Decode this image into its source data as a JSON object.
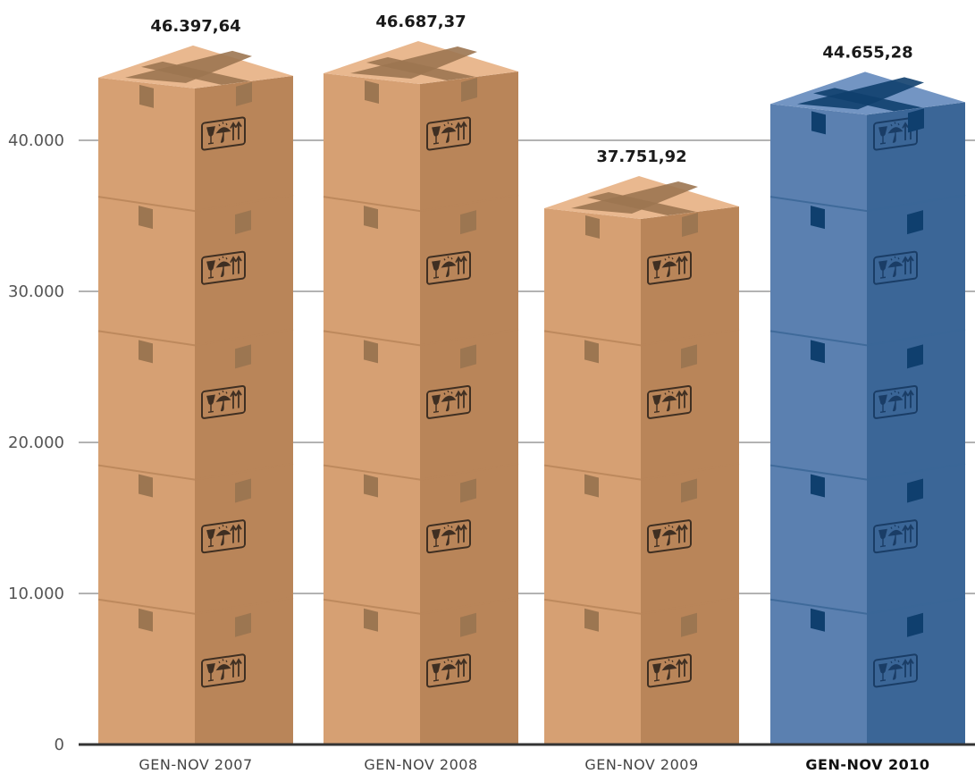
{
  "chart_data": {
    "type": "bar",
    "title": "",
    "xlabel": "",
    "ylabel": "",
    "categories": [
      "GEN-NOV 2007",
      "GEN-NOV 2008",
      "GEN-NOV 2009",
      "GEN-NOV 2010"
    ],
    "values": [
      46397.64,
      46687.37,
      37751.92,
      44655.28
    ],
    "value_labels": [
      "46.397,64",
      "46.687,37",
      "37.751,92",
      "44.655,28"
    ],
    "highlight_index": 3,
    "ylim": [
      0,
      46687.37
    ],
    "yticks": [
      0,
      10000,
      20000,
      30000,
      40000
    ],
    "ytick_labels": [
      "0",
      "10.000",
      "20.000",
      "30.000",
      "40.000"
    ],
    "grid": true,
    "legend": "none",
    "colors": {
      "box_front": "#d6a073",
      "box_side": "#b98559",
      "box_top": "#e9b88f",
      "tape": "#9c7651",
      "box_front_highlight": "#5b80b0",
      "box_side_highlight": "#3b6697",
      "box_top_highlight": "#7395c3",
      "tape_highlight": "#0f3f6e",
      "gridline": "#9a9a9a",
      "axis": "#333333",
      "icon": "#3f2f22",
      "icon_highlight": "#1a3d66"
    }
  }
}
